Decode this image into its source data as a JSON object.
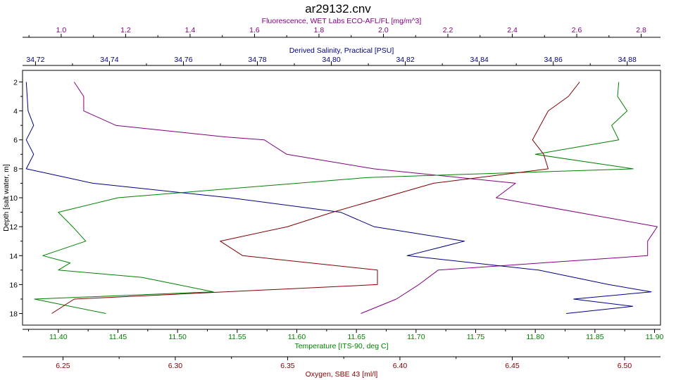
{
  "chart_data": {
    "type": "line",
    "title": "ar29132.cnv",
    "ylabel": "Depth [salt water, m]",
    "ylim": [
      1.2,
      18.8
    ],
    "yticks": [
      2,
      4,
      6,
      8,
      10,
      12,
      14,
      16,
      18
    ],
    "y_inverted": true,
    "grid": false,
    "legend": "none",
    "axes": [
      {
        "id": "fl",
        "label": "Fluorescence, WET Labs ECO-AFL/FL [mg/m^3]",
        "position": "top-outer",
        "color": "#800080",
        "range": [
          0.88,
          2.86
        ],
        "ticks": [
          "1.0",
          "1.2",
          "1.4",
          "1.6",
          "1.8",
          "2.0",
          "2.2",
          "2.4",
          "2.6",
          "2.8"
        ]
      },
      {
        "id": "sal",
        "label": "Derived Salinity, Practical [PSU]",
        "position": "top-inner",
        "color": "#000080",
        "range": [
          34.7165,
          34.889
        ],
        "ticks": [
          "34.72",
          "34.74",
          "34.76",
          "34.78",
          "34.80",
          "34.82",
          "34.84",
          "34.86",
          "34.88"
        ]
      },
      {
        "id": "temp",
        "label": "Temperature [ITS-90, deg C]",
        "position": "bottom-inner",
        "color": "#008000",
        "range": [
          11.37,
          11.905
        ],
        "ticks": [
          "11.40",
          "11.45",
          "11.50",
          "11.55",
          "11.60",
          "11.65",
          "11.70",
          "11.75",
          "11.80",
          "11.85",
          "11.90"
        ]
      },
      {
        "id": "oxy",
        "label": "Oxygen, SBE 43 [ml/l]",
        "position": "bottom-outer",
        "color": "#800000",
        "range": [
          6.232,
          6.516
        ],
        "ticks": [
          "6.25",
          "6.30",
          "6.35",
          "6.40",
          "6.45",
          "6.50"
        ]
      }
    ],
    "series": [
      {
        "axis": "fl",
        "color": "#800080",
        "points": [
          [
            1.04,
            2
          ],
          [
            1.07,
            3
          ],
          [
            1.07,
            4
          ],
          [
            1.17,
            5
          ],
          [
            1.51,
            5.8
          ],
          [
            1.63,
            6
          ],
          [
            1.7,
            7
          ],
          [
            1.97,
            8
          ],
          [
            2.41,
            9
          ],
          [
            2.35,
            10
          ],
          [
            2.85,
            12
          ],
          [
            2.82,
            13
          ],
          [
            2.82,
            14
          ],
          [
            2.17,
            15
          ],
          [
            2.11,
            16
          ],
          [
            2.04,
            17
          ],
          [
            1.93,
            18
          ]
        ]
      },
      {
        "axis": "sal",
        "color": "#000080",
        "points": [
          [
            34.7175,
            2
          ],
          [
            34.718,
            4
          ],
          [
            34.7195,
            5
          ],
          [
            34.7175,
            6
          ],
          [
            34.7195,
            7
          ],
          [
            34.7175,
            8
          ],
          [
            34.7355,
            9
          ],
          [
            34.7725,
            10
          ],
          [
            34.8025,
            11
          ],
          [
            34.8115,
            12
          ],
          [
            34.836,
            13
          ],
          [
            34.8205,
            14
          ],
          [
            34.856,
            15
          ],
          [
            34.875,
            16
          ],
          [
            34.8865,
            16.5
          ],
          [
            34.8655,
            17
          ],
          [
            34.8815,
            17.5
          ],
          [
            34.8635,
            18
          ]
        ]
      },
      {
        "axis": "temp",
        "color": "#008000",
        "points": [
          [
            11.87,
            2
          ],
          [
            11.869,
            3
          ],
          [
            11.877,
            4
          ],
          [
            11.864,
            5
          ],
          [
            11.87,
            6
          ],
          [
            11.8,
            7
          ],
          [
            11.882,
            8
          ],
          [
            11.66,
            8.6
          ],
          [
            11.45,
            10
          ],
          [
            11.4,
            11
          ],
          [
            11.412,
            12
          ],
          [
            11.423,
            13
          ],
          [
            11.387,
            14
          ],
          [
            11.41,
            14.5
          ],
          [
            11.4,
            15
          ],
          [
            11.47,
            15.5
          ],
          [
            11.5,
            16
          ],
          [
            11.53,
            16.5
          ],
          [
            11.38,
            17
          ],
          [
            11.44,
            18
          ]
        ]
      },
      {
        "axis": "oxy",
        "color": "#800000",
        "points": [
          [
            6.48,
            2
          ],
          [
            6.475,
            3
          ],
          [
            6.466,
            4
          ],
          [
            6.459,
            6
          ],
          [
            6.464,
            7
          ],
          [
            6.466,
            8
          ],
          [
            6.415,
            9
          ],
          [
            6.37,
            11
          ],
          [
            6.35,
            12
          ],
          [
            6.32,
            13
          ],
          [
            6.33,
            14
          ],
          [
            6.39,
            15
          ],
          [
            6.39,
            16
          ],
          [
            6.255,
            17
          ],
          [
            6.245,
            18
          ]
        ]
      }
    ]
  }
}
